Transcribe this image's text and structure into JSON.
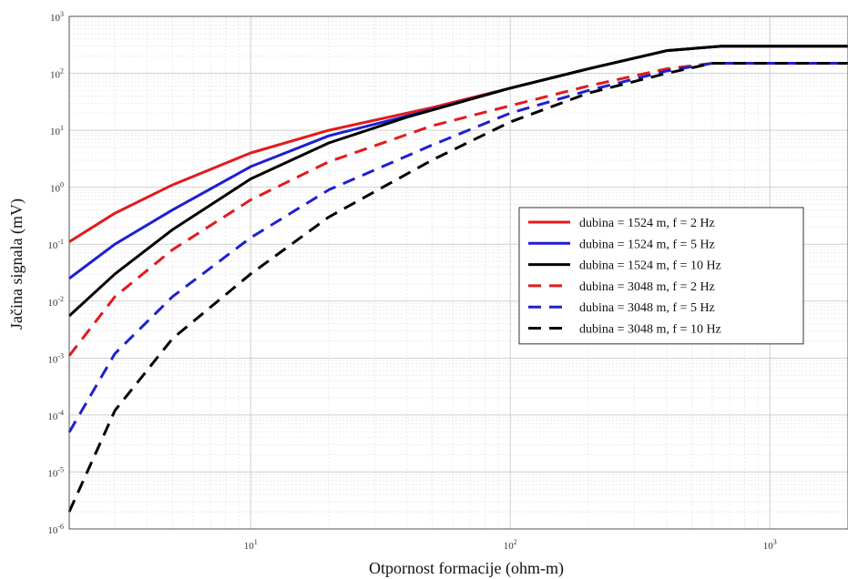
{
  "chart_data": {
    "type": "line",
    "title": "",
    "xlabel": "Otpornost formacije (ohm-m)",
    "ylabel": "Jačina signala (mV)",
    "xscale": "log",
    "yscale": "log",
    "xlim": [
      2,
      2000
    ],
    "ylim": [
      1e-06,
      1000
    ],
    "grid": true,
    "legend_position": "right",
    "x_ticks": [
      {
        "value": 10,
        "base": "10",
        "exp": "1"
      },
      {
        "value": 100,
        "base": "10",
        "exp": "2"
      },
      {
        "value": 1000,
        "base": "10",
        "exp": "3"
      }
    ],
    "y_ticks": [
      {
        "value": 1e-06,
        "base": "10",
        "exp": "-6"
      },
      {
        "value": 1e-05,
        "base": "10",
        "exp": "-5"
      },
      {
        "value": 0.0001,
        "base": "10",
        "exp": "-4"
      },
      {
        "value": 0.001,
        "base": "10",
        "exp": "-3"
      },
      {
        "value": 0.01,
        "base": "10",
        "exp": "-2"
      },
      {
        "value": 0.1,
        "base": "10",
        "exp": "-1"
      },
      {
        "value": 1,
        "base": "10",
        "exp": "0"
      },
      {
        "value": 10,
        "base": "10",
        "exp": "1"
      },
      {
        "value": 100,
        "base": "10",
        "exp": "2"
      },
      {
        "value": 1000,
        "base": "10",
        "exp": "3"
      }
    ],
    "series": [
      {
        "name": "dubina = 1524 m, f = 2 Hz",
        "color": "#e31a1c",
        "dash": "solid",
        "x": [
          2,
          3,
          5,
          10,
          20,
          50,
          100,
          200,
          400,
          650,
          2000
        ],
        "y": [
          0.11,
          0.35,
          1.1,
          4,
          10,
          25,
          55,
          120,
          250,
          300,
          300
        ]
      },
      {
        "name": "dubina = 1524 m, f = 5 Hz",
        "color": "#1f1fd0",
        "dash": "solid",
        "x": [
          2,
          3,
          5,
          10,
          20,
          50,
          100,
          200,
          400,
          650,
          2000
        ],
        "y": [
          0.025,
          0.1,
          0.4,
          2.3,
          8,
          23,
          55,
          120,
          250,
          300,
          300
        ]
      },
      {
        "name": "dubina = 1524 m, f = 10 Hz",
        "color": "#000000",
        "dash": "solid",
        "x": [
          2,
          3,
          5,
          10,
          20,
          40,
          100,
          200,
          400,
          650,
          2000
        ],
        "y": [
          0.0055,
          0.03,
          0.18,
          1.4,
          6,
          17,
          55,
          120,
          250,
          300,
          300
        ]
      },
      {
        "name": "dubina = 3048 m, f = 2 Hz",
        "color": "#e31a1c",
        "dash": "dashed",
        "x": [
          2,
          3,
          5,
          10,
          20,
          50,
          100,
          200,
          400,
          600,
          2000
        ],
        "y": [
          0.0011,
          0.012,
          0.08,
          0.6,
          2.8,
          12,
          27,
          60,
          120,
          150,
          150
        ]
      },
      {
        "name": "dubina = 3048 m, f = 5 Hz",
        "color": "#1f1fd0",
        "dash": "dashed",
        "x": [
          2,
          3,
          5,
          10,
          20,
          50,
          100,
          200,
          400,
          600,
          2000
        ],
        "y": [
          5e-05,
          0.0012,
          0.012,
          0.13,
          0.9,
          5.5,
          20,
          50,
          110,
          150,
          150
        ]
      },
      {
        "name": "dubina = 3048 m, f = 10 Hz",
        "color": "#000000",
        "dash": "dashed",
        "x": [
          2,
          3,
          5,
          10,
          20,
          50,
          100,
          200,
          400,
          600,
          2000
        ],
        "y": [
          2e-06,
          0.00012,
          0.0022,
          0.03,
          0.3,
          3,
          14,
          45,
          100,
          150,
          150
        ]
      }
    ]
  }
}
